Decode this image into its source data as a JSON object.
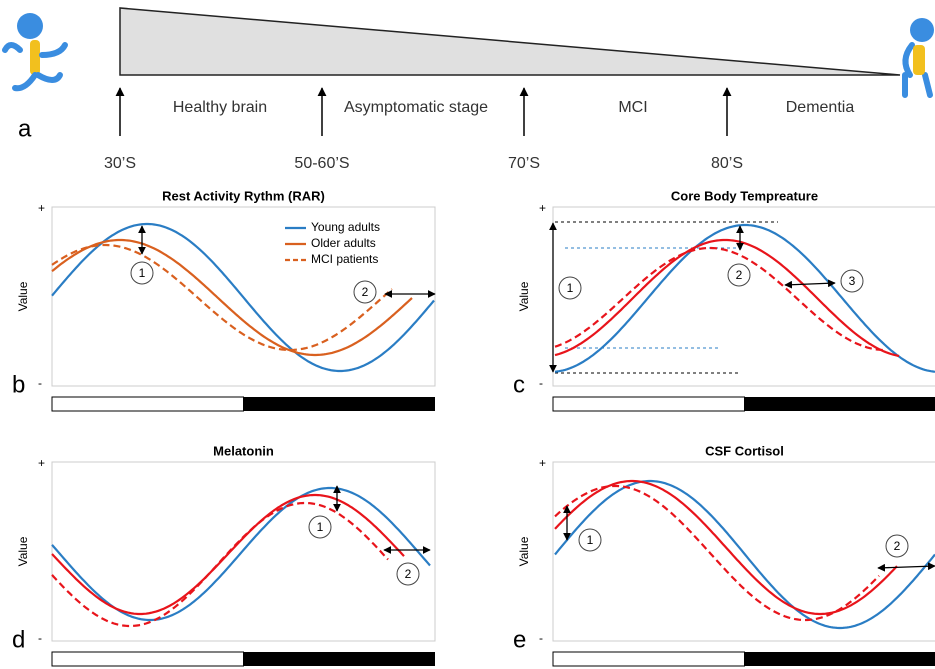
{
  "timeline": {
    "label": "a",
    "stages": [
      "Healthy brain",
      "Asymptomatic stage",
      "MCI",
      "Dementia"
    ],
    "ages": [
      "30’S",
      "50-60’S",
      "70’S",
      "80’S"
    ]
  },
  "panels": [
    {
      "letter": "b",
      "title": "Rest Activity Rythm (RAR)",
      "y_label": "Value",
      "plus": "+",
      "minus": "-",
      "callouts": [
        "1",
        "2"
      ],
      "legend": [
        "Young adults",
        "Older adults",
        "MCI patients"
      ]
    },
    {
      "letter": "c",
      "title": "Core Body Tempreature",
      "y_label": "Value",
      "plus": "+",
      "minus": "-",
      "callouts": [
        "1",
        "2",
        "3"
      ]
    },
    {
      "letter": "d",
      "title": "Melatonin",
      "y_label": "Value",
      "plus": "+",
      "minus": "-",
      "callouts": [
        "1",
        "2"
      ]
    },
    {
      "letter": "e",
      "title": "CSF Cortisol",
      "y_label": "Value",
      "plus": "+",
      "minus": "-",
      "callouts": [
        "1",
        "2"
      ]
    }
  ]
}
